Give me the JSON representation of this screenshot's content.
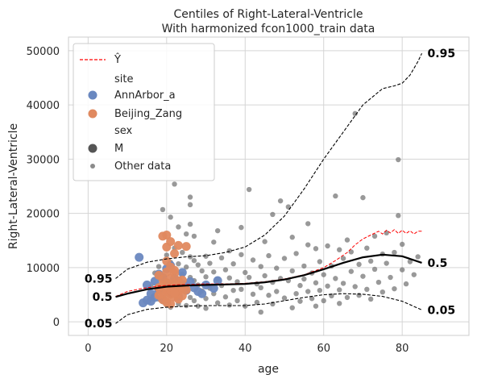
{
  "chart_data": {
    "type": "scatter",
    "title_line1": "Centiles of Right-Lateral-Ventricle",
    "title_line2": "With harmonized fcon1000_train data",
    "xlabel": "age",
    "ylabel": "Right-Lateral-Ventricle",
    "xlim": [
      -5,
      97
    ],
    "ylim": [
      -2500,
      52500
    ],
    "xticks": [
      0,
      20,
      40,
      60,
      80
    ],
    "yticks": [
      0,
      10000,
      20000,
      30000,
      40000,
      50000
    ],
    "grid": true,
    "legend_position": "top-left",
    "legend": {
      "yhat_label": "Ŷ",
      "site_header": "site",
      "site_items": [
        "AnnArbor_a",
        "Beijing_Zang"
      ],
      "sex_header": "sex",
      "sex_items": [
        "M"
      ],
      "other_label": "Other data"
    },
    "colors": {
      "annarbor": "#6a88c0",
      "beijing": "#e0895f",
      "other": "#6e6e6e",
      "yhat": "#ff0000",
      "centile": "#000000",
      "grid": "#d5d5d5"
    },
    "yhat": {
      "name": "Ŷ",
      "x": [
        7,
        10,
        14,
        18,
        22,
        26,
        30,
        35,
        40,
        45,
        50,
        55,
        60,
        63,
        66,
        68,
        70,
        72,
        74,
        75,
        76,
        77,
        78,
        79,
        80,
        81,
        82,
        83,
        84,
        85
      ],
      "y": [
        4700,
        5600,
        6200,
        6600,
        6800,
        6900,
        7000,
        7000,
        7100,
        7400,
        7900,
        8700,
        10000,
        11300,
        12800,
        14200,
        15300,
        16000,
        16700,
        16200,
        16900,
        16400,
        17000,
        16300,
        16900,
        16300,
        16800,
        16200,
        16700,
        16700
      ]
    },
    "centiles": [
      {
        "label": "0.95",
        "x": [
          7,
          10,
          15,
          20,
          25,
          30,
          35,
          40,
          45,
          50,
          55,
          60,
          65,
          70,
          75,
          78,
          80,
          82,
          84,
          85
        ],
        "y": [
          8000,
          9700,
          11000,
          11600,
          12000,
          12200,
          12800,
          13800,
          16000,
          19500,
          24500,
          30000,
          35000,
          40000,
          43000,
          43500,
          44000,
          45500,
          48000,
          49500
        ]
      },
      {
        "label": "0.5",
        "x": [
          7,
          10,
          15,
          20,
          25,
          30,
          35,
          40,
          45,
          50,
          55,
          60,
          65,
          70,
          75,
          80,
          85
        ],
        "y": [
          4600,
          5200,
          6000,
          6500,
          6700,
          6800,
          6900,
          7000,
          7300,
          7800,
          8600,
          9700,
          10900,
          11900,
          12400,
          12100,
          10900
        ]
      },
      {
        "label": "0.05",
        "x": [
          7,
          10,
          15,
          20,
          25,
          30,
          35,
          40,
          45,
          50,
          55,
          60,
          65,
          70,
          75,
          80,
          85
        ],
        "y": [
          -300,
          1300,
          2300,
          2700,
          2900,
          3000,
          3000,
          3000,
          3300,
          3900,
          4500,
          5000,
          5200,
          5100,
          4700,
          3800,
          2200
        ]
      }
    ],
    "annarbor_points": [
      [
        13,
        11900
      ],
      [
        14,
        3500
      ],
      [
        15,
        6800
      ],
      [
        15,
        4000
      ],
      [
        16,
        5200
      ],
      [
        17,
        7500
      ],
      [
        17,
        4500
      ],
      [
        18,
        8800
      ],
      [
        18,
        6000
      ],
      [
        19,
        4200
      ],
      [
        20,
        9800
      ],
      [
        20,
        7200
      ],
      [
        21,
        5500
      ],
      [
        22,
        8000
      ],
      [
        22,
        6200
      ],
      [
        23,
        4700
      ],
      [
        24,
        6900
      ],
      [
        25,
        5800
      ],
      [
        26,
        7400
      ],
      [
        27,
        6300
      ],
      [
        28,
        5600
      ],
      [
        30,
        6800
      ],
      [
        32,
        6200
      ],
      [
        33,
        7600
      ],
      [
        16,
        3800
      ],
      [
        19,
        8200
      ],
      [
        21,
        10400
      ],
      [
        24,
        9100
      ],
      [
        29,
        5200
      ],
      [
        18,
        5900
      ]
    ],
    "beijing_points": [
      [
        19,
        15800
      ],
      [
        20,
        16000
      ],
      [
        20,
        13800
      ],
      [
        21,
        14800
      ],
      [
        22,
        12600
      ],
      [
        23,
        14100
      ],
      [
        25,
        13900
      ],
      [
        18,
        8600
      ],
      [
        19,
        7900
      ],
      [
        20,
        7200
      ],
      [
        21,
        6600
      ],
      [
        22,
        6100
      ],
      [
        20,
        5600
      ],
      [
        21,
        5100
      ],
      [
        22,
        4600
      ],
      [
        19,
        4100
      ],
      [
        23,
        5400
      ],
      [
        24,
        6300
      ],
      [
        20,
        9200
      ],
      [
        21,
        10100
      ],
      [
        22,
        8900
      ],
      [
        23,
        7600
      ],
      [
        19,
        6800
      ],
      [
        20,
        3600
      ],
      [
        21,
        3300
      ],
      [
        22,
        7100
      ],
      [
        23,
        6000
      ],
      [
        24,
        4800
      ],
      [
        25,
        5900
      ],
      [
        18,
        6300
      ],
      [
        19,
        5300
      ],
      [
        20,
        4300
      ],
      [
        21,
        8000
      ],
      [
        22,
        9500
      ],
      [
        20,
        11200
      ],
      [
        24,
        7700
      ],
      [
        18,
        4900
      ],
      [
        23,
        4200
      ],
      [
        21,
        5800
      ],
      [
        22,
        5300
      ]
    ],
    "other_points": [
      [
        16,
        6500
      ],
      [
        17,
        9000
      ],
      [
        18,
        4200
      ],
      [
        18,
        10200
      ],
      [
        19,
        20700
      ],
      [
        19,
        8400
      ],
      [
        19,
        3700
      ],
      [
        20,
        12300
      ],
      [
        20,
        7000
      ],
      [
        20,
        3100
      ],
      [
        21,
        19300
      ],
      [
        21,
        11000
      ],
      [
        21,
        6000
      ],
      [
        21,
        2700
      ],
      [
        22,
        25400
      ],
      [
        22,
        13600
      ],
      [
        22,
        9400
      ],
      [
        22,
        4900
      ],
      [
        23,
        17500
      ],
      [
        23,
        10700
      ],
      [
        23,
        7100
      ],
      [
        23,
        3300
      ],
      [
        24,
        12800
      ],
      [
        24,
        8800
      ],
      [
        24,
        5800
      ],
      [
        25,
        16200
      ],
      [
        25,
        10100
      ],
      [
        25,
        6500
      ],
      [
        25,
        3000
      ],
      [
        26,
        23000
      ],
      [
        26,
        21600
      ],
      [
        26,
        18000
      ],
      [
        26,
        12000
      ],
      [
        26,
        8200
      ],
      [
        26,
        4500
      ],
      [
        27,
        11300
      ],
      [
        27,
        7600
      ],
      [
        27,
        3900
      ],
      [
        28,
        10500
      ],
      [
        28,
        6800
      ],
      [
        28,
        2900
      ],
      [
        29,
        9400
      ],
      [
        29,
        5700
      ],
      [
        30,
        12100
      ],
      [
        30,
        8300
      ],
      [
        30,
        4300
      ],
      [
        31,
        10800
      ],
      [
        31,
        6200
      ],
      [
        32,
        14700
      ],
      [
        32,
        9200
      ],
      [
        32,
        5200
      ],
      [
        33,
        7900
      ],
      [
        33,
        3500
      ],
      [
        34,
        11800
      ],
      [
        34,
        6700
      ],
      [
        35,
        9600
      ],
      [
        35,
        4600
      ],
      [
        36,
        8100
      ],
      [
        36,
        13100
      ],
      [
        37,
        5800
      ],
      [
        37,
        10700
      ],
      [
        38,
        7400
      ],
      [
        38,
        3900
      ],
      [
        39,
        12400
      ],
      [
        39,
        6000
      ],
      [
        40,
        9100
      ],
      [
        40,
        2900
      ],
      [
        41,
        24400
      ],
      [
        41,
        8200
      ],
      [
        42,
        5100
      ],
      [
        42,
        11400
      ],
      [
        43,
        7000
      ],
      [
        43,
        3600
      ],
      [
        44,
        10200
      ],
      [
        44,
        6300
      ],
      [
        45,
        14800
      ],
      [
        45,
        8500
      ],
      [
        46,
        4900
      ],
      [
        46,
        12200
      ],
      [
        47,
        7300
      ],
      [
        47,
        3300
      ],
      [
        48,
        9900
      ],
      [
        48,
        5600
      ],
      [
        49,
        22300
      ],
      [
        49,
        8000
      ],
      [
        50,
        11700
      ],
      [
        50,
        4400
      ],
      [
        51,
        21200
      ],
      [
        51,
        7600
      ],
      [
        52,
        15600
      ],
      [
        52,
        9400
      ],
      [
        53,
        5200
      ],
      [
        53,
        12600
      ],
      [
        54,
        6700
      ],
      [
        54,
        3800
      ],
      [
        55,
        10300
      ],
      [
        55,
        7900
      ],
      [
        56,
        14200
      ],
      [
        56,
        5600
      ],
      [
        57,
        9000
      ],
      [
        57,
        4300
      ],
      [
        58,
        13500
      ],
      [
        58,
        7200
      ],
      [
        59,
        11100
      ],
      [
        59,
        5800
      ],
      [
        60,
        8700
      ],
      [
        60,
        3900
      ],
      [
        61,
        14000
      ],
      [
        61,
        6600
      ],
      [
        62,
        10300
      ],
      [
        62,
        4800
      ],
      [
        63,
        23200
      ],
      [
        63,
        8000
      ],
      [
        64,
        13300
      ],
      [
        64,
        5900
      ],
      [
        65,
        11700
      ],
      [
        65,
        7100
      ],
      [
        66,
        15100
      ],
      [
        66,
        4500
      ],
      [
        67,
        9300
      ],
      [
        67,
        12900
      ],
      [
        68,
        38400
      ],
      [
        68,
        6500
      ],
      [
        69,
        10600
      ],
      [
        69,
        4900
      ],
      [
        70,
        22900
      ],
      [
        70,
        8400
      ],
      [
        71,
        13600
      ],
      [
        71,
        6000
      ],
      [
        72,
        11200
      ],
      [
        72,
        4200
      ],
      [
        73,
        9700
      ],
      [
        73,
        15800
      ],
      [
        74,
        7300
      ],
      [
        75,
        12500
      ],
      [
        75,
        5500
      ],
      [
        76,
        10800
      ],
      [
        76,
        16400
      ],
      [
        77,
        8200
      ],
      [
        78,
        12800
      ],
      [
        78,
        6100
      ],
      [
        79,
        29900
      ],
      [
        79,
        19600
      ],
      [
        80,
        9600
      ],
      [
        80,
        14300
      ],
      [
        81,
        7000
      ],
      [
        82,
        11100
      ],
      [
        83,
        8700
      ],
      [
        84,
        12000
      ],
      [
        36,
        3100
      ],
      [
        44,
        1800
      ],
      [
        52,
        2600
      ],
      [
        58,
        2900
      ],
      [
        64,
        3400
      ],
      [
        30,
        2500
      ],
      [
        27,
        15800
      ],
      [
        33,
        16800
      ],
      [
        39,
        17400
      ],
      [
        47,
        19800
      ],
      [
        56,
        18100
      ]
    ]
  }
}
